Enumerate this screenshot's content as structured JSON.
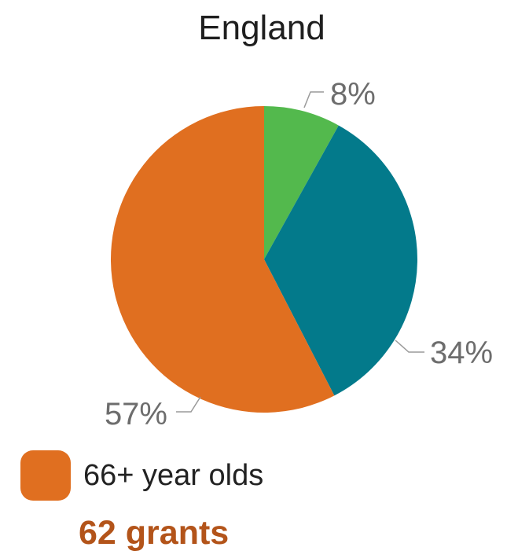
{
  "chart_data": {
    "type": "pie",
    "title": "England",
    "slices": [
      {
        "label": "8%",
        "value": 8,
        "color": "#53b94d"
      },
      {
        "label": "34%",
        "value": 34,
        "color": "#037a8b"
      },
      {
        "label": "57%",
        "value": 57,
        "color": "#e06f20"
      }
    ],
    "legend": [
      {
        "label": "66+ year olds",
        "color": "#e06f20"
      }
    ],
    "annotation": "62 grants",
    "annotation_color": "#b3541a"
  }
}
